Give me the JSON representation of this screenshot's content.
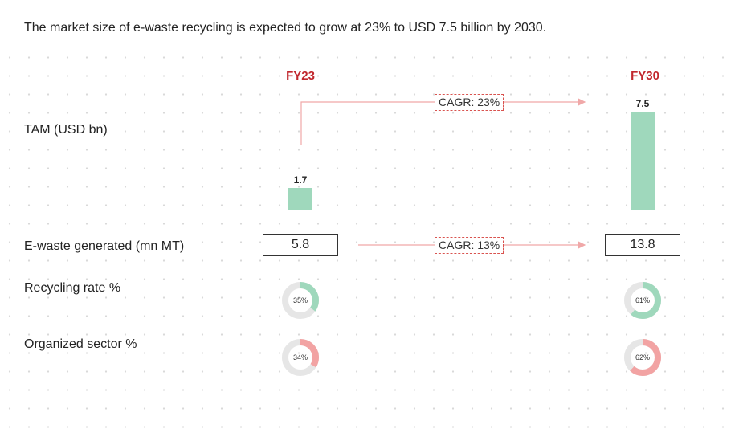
{
  "title": "The market size of e-waste recycling is expected to grow at 23% to USD 7.5 billion by 2030.",
  "colors": {
    "accent_red": "#c1272d",
    "bar_green": "#9fd8bc",
    "ring_green": "#9fd8bc",
    "ring_red": "#f2a3a3",
    "ring_track": "#e6e6e6",
    "arrow": "#f0a8a8"
  },
  "chart_data": {
    "type": "bar",
    "categories": [
      "FY23",
      "FY30"
    ],
    "rows": {
      "tam": {
        "label": "TAM (USD bn)",
        "values": [
          1.7,
          7.5
        ],
        "value_labels": [
          "1.7",
          "7.5"
        ],
        "cagr": "CAGR: 23%"
      },
      "ewaste": {
        "label": "E-waste generated (mn MT)",
        "values": [
          5.8,
          13.8
        ],
        "value_labels": [
          "5.8",
          "13.8"
        ],
        "cagr": "CAGR: 13%"
      },
      "recycling": {
        "label": "Recycling rate %",
        "values": [
          35,
          61
        ],
        "value_labels": [
          "35%",
          "61%"
        ],
        "color": "green"
      },
      "organized": {
        "label": "Organized sector %",
        "values": [
          34,
          62
        ],
        "value_labels": [
          "34%",
          "62%"
        ],
        "color": "red"
      }
    },
    "ylabel": "TAM (USD bn)",
    "ylim": [
      0,
      7.5
    ]
  }
}
